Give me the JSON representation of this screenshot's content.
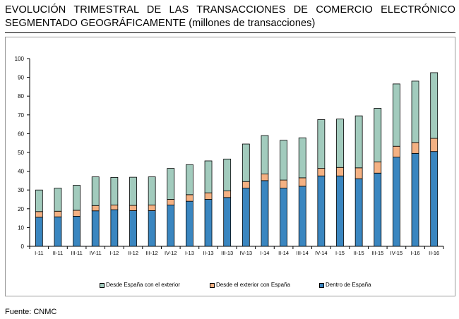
{
  "title": {
    "line1": "EVOLUCIÓN TRIMESTRAL DE LAS TRANSACCIONES DE COMERCIO ELECTRÓNICO",
    "line2_main": "SEGMENTADO GEOGRÁFICAMENTE",
    "line2_unit": " (millones de transacciones)"
  },
  "source": "Fuente: CNMC",
  "chart_data": {
    "type": "bar",
    "stacked": true,
    "categories": [
      "I-11",
      "II-11",
      "III-11",
      "IV-11",
      "I-12",
      "II-12",
      "III-12",
      "IV-12",
      "I-13",
      "II-13",
      "III-13",
      "IV-13",
      "I-14",
      "II-14",
      "III-14",
      "IV-14",
      "I-15",
      "II-15",
      "III-15",
      "IV-15",
      "I-16",
      "II-16"
    ],
    "series": [
      {
        "name": "Dentro de España",
        "color": "#3a86c0",
        "values": [
          15.5,
          15.7,
          16.0,
          18.9,
          19.5,
          19.0,
          19.0,
          22.0,
          24.0,
          25.0,
          26.0,
          31.0,
          35.0,
          31.0,
          32.0,
          37.5,
          37.5,
          36.0,
          39.0,
          47.5,
          49.5,
          50.5
        ]
      },
      {
        "name": "Desde el exterior con España",
        "color": "#f4b183",
        "values": [
          3.0,
          3.0,
          3.2,
          2.8,
          2.5,
          2.8,
          3.0,
          3.0,
          3.5,
          3.5,
          3.5,
          3.5,
          3.5,
          4.3,
          4.5,
          4.0,
          4.5,
          5.8,
          6.0,
          5.8,
          5.8,
          7.0
        ]
      },
      {
        "name": "Desde España con el exterior",
        "color": "#a2cbbd",
        "values": [
          11.5,
          12.3,
          13.3,
          15.3,
          14.7,
          15.0,
          15.0,
          16.5,
          16.0,
          17.0,
          17.0,
          20.0,
          20.5,
          21.2,
          21.3,
          26.0,
          25.8,
          27.7,
          28.5,
          33.2,
          32.7,
          35.0
        ]
      }
    ],
    "legend_order": [
      "Desde España con el exterior",
      "Desde el exterior con España",
      "Dentro de España"
    ],
    "ylim": [
      0,
      100
    ],
    "yticks": [
      0,
      10,
      20,
      30,
      40,
      50,
      60,
      70,
      80,
      90,
      100
    ],
    "grid": false,
    "legend_position": "bottom",
    "xlabel": "",
    "ylabel": ""
  }
}
